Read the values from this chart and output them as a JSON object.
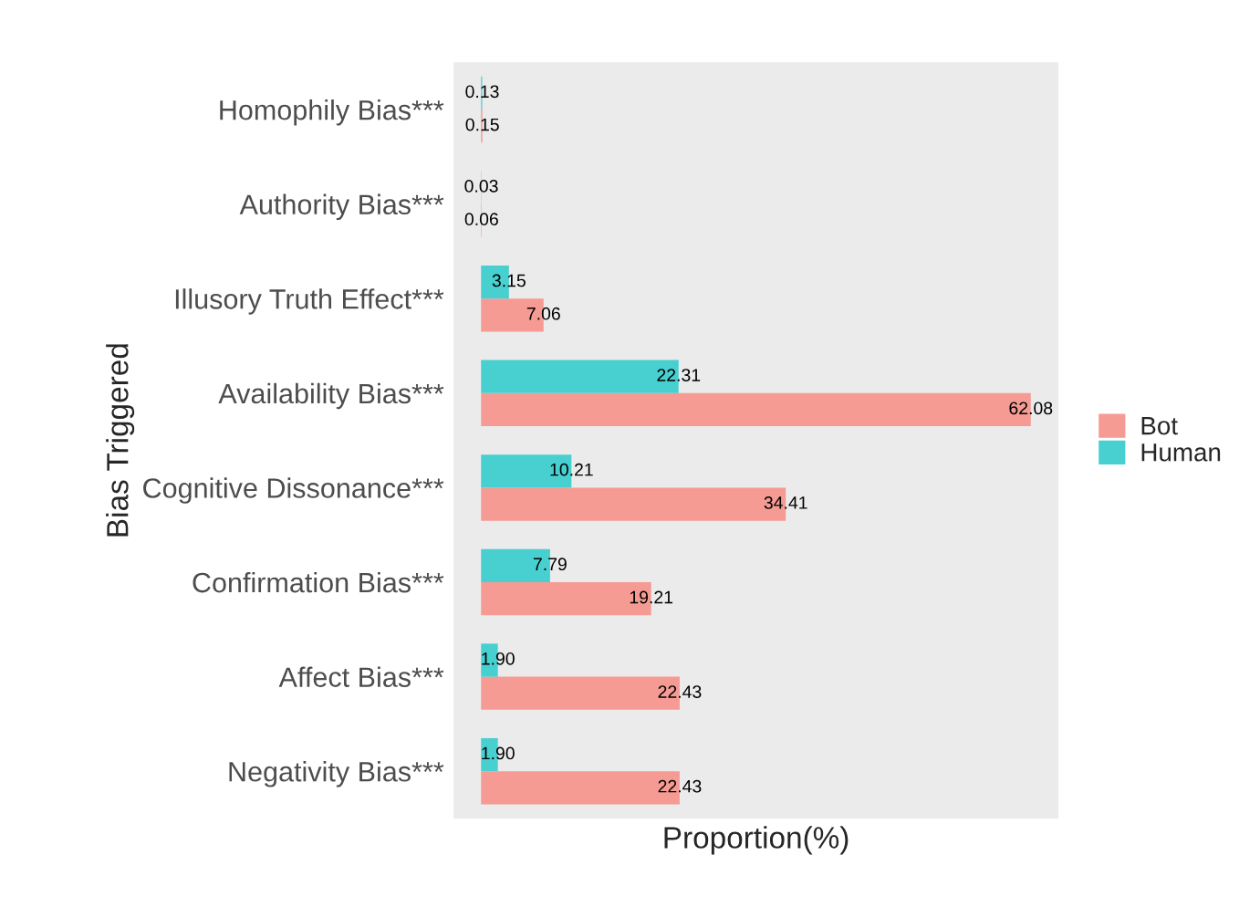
{
  "chart_data": {
    "type": "bar",
    "orientation": "horizontal",
    "xlabel": "Proportion(%)",
    "ylabel": "Bias Triggered",
    "categories": [
      "Homophily Bias***",
      "Authority Bias***",
      "Illusory Truth Effect***",
      "Availability Bias***",
      "Cognitive Dissonance***",
      "Confirmation Bias***",
      "Affect Bias***",
      "Negativity Bias***"
    ],
    "series": [
      {
        "name": "Bot",
        "color": "#f59b94",
        "values": [
          0.15,
          0.06,
          7.06,
          62.08,
          34.41,
          19.21,
          22.43,
          22.43
        ],
        "value_labels": [
          "0.15",
          "0.06",
          "7.06",
          "62.08",
          "34.41",
          "19.21",
          "22.43",
          "22.43"
        ]
      },
      {
        "name": "Human",
        "color": "#48cfd0",
        "values": [
          0.13,
          0.03,
          3.15,
          22.31,
          10.21,
          7.79,
          1.9,
          1.9
        ],
        "value_labels": [
          "0.13",
          "0.03",
          "3.15",
          "22.31",
          "10.21",
          "7.79",
          "1.90",
          "1.90"
        ]
      }
    ],
    "xlim": [
      -3.1,
      65.2
    ],
    "tick_labels": "y",
    "grid": false,
    "legend": "right"
  }
}
